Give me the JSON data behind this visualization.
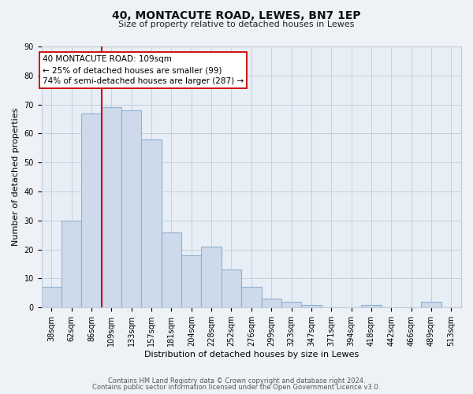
{
  "title": "40, MONTACUTE ROAD, LEWES, BN7 1EP",
  "subtitle": "Size of property relative to detached houses in Lewes",
  "xlabel": "Distribution of detached houses by size in Lewes",
  "ylabel": "Number of detached properties",
  "bar_labels": [
    "38sqm",
    "62sqm",
    "86sqm",
    "109sqm",
    "133sqm",
    "157sqm",
    "181sqm",
    "204sqm",
    "228sqm",
    "252sqm",
    "276sqm",
    "299sqm",
    "323sqm",
    "347sqm",
    "371sqm",
    "394sqm",
    "418sqm",
    "442sqm",
    "466sqm",
    "489sqm",
    "513sqm"
  ],
  "bar_heights": [
    7,
    30,
    67,
    69,
    68,
    58,
    26,
    18,
    21,
    13,
    7,
    3,
    2,
    1,
    0,
    0,
    1,
    0,
    0,
    2,
    0
  ],
  "bar_color": "#cddaec",
  "bar_edge_color": "#8fb0d3",
  "vline_x_index": 3,
  "vline_color": "#cc0000",
  "annotation_text": "40 MONTACUTE ROAD: 109sqm\n← 25% of detached houses are smaller (99)\n74% of semi-detached houses are larger (287) →",
  "annotation_box_facecolor": "#ffffff",
  "annotation_box_edgecolor": "#cc0000",
  "ylim": [
    0,
    90
  ],
  "yticks": [
    0,
    10,
    20,
    30,
    40,
    50,
    60,
    70,
    80,
    90
  ],
  "footer_line1": "Contains HM Land Registry data © Crown copyright and database right 2024.",
  "footer_line2": "Contains public sector information licensed under the Open Government Licence v3.0.",
  "bg_color": "#eef2f7",
  "plot_bg_color": "#e8eef5",
  "grid_color": "#c0ccd8",
  "title_fontsize": 10,
  "subtitle_fontsize": 8,
  "tick_fontsize": 7,
  "ylabel_fontsize": 8,
  "xlabel_fontsize": 8,
  "annotation_fontsize": 7.5,
  "footer_fontsize": 6
}
